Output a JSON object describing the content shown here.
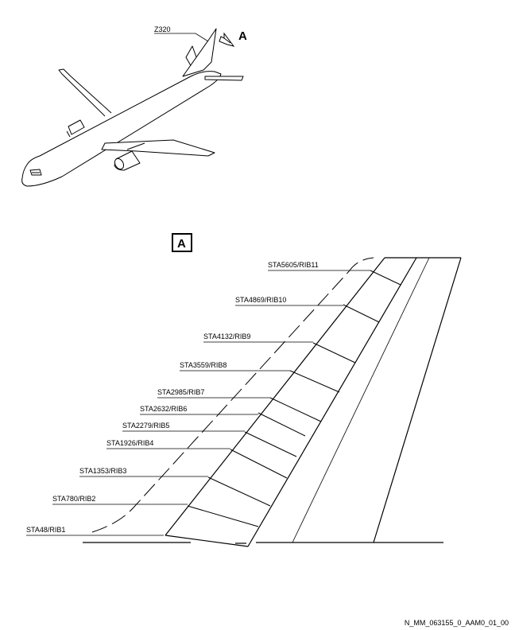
{
  "zone_label": "Z320",
  "view_label": "A",
  "detail_tag": "A",
  "ribs": [
    "STA5605/RIB11",
    "STA4869/RIB10",
    "STA4132/RIB9",
    "STA3559/RIB8",
    "STA2985/RIB7",
    "STA2632/RIB6",
    "STA2279/RIB5",
    "STA1926/RIB4",
    "STA1353/RIB3",
    "STA780/RIB2",
    "STA48/RIB1"
  ],
  "footer_code": "N_MM_063155_0_AAM0_01_00"
}
